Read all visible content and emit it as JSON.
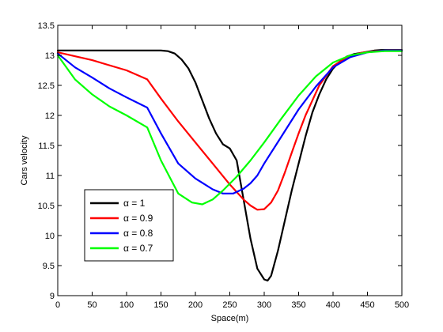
{
  "chart_data": {
    "type": "line",
    "title": "",
    "xlabel": "Space(m)",
    "ylabel": "Cars velocity",
    "xlim": [
      0,
      500
    ],
    "ylim": [
      9,
      13.5
    ],
    "xticks": [
      0,
      50,
      100,
      150,
      200,
      250,
      300,
      350,
      400,
      450,
      500
    ],
    "xtick_labels": [
      "0",
      "50",
      "100",
      "150",
      "200",
      "250",
      "300",
      "350",
      "400",
      "450",
      "500"
    ],
    "yticks": [
      9,
      9.5,
      10,
      10.5,
      11,
      11.5,
      12,
      12.5,
      13,
      13.5
    ],
    "ytick_labels": [
      "9",
      "9.5",
      "10",
      "10.5",
      "11",
      "11.5",
      "12",
      "12.5",
      "13",
      "13.5"
    ],
    "grid": false,
    "legend_position": "lower-left",
    "series": [
      {
        "name": "α = 1",
        "color": "#000000",
        "x": [
          0,
          50,
          100,
          150,
          160,
          170,
          180,
          190,
          200,
          210,
          220,
          230,
          240,
          250,
          260,
          270,
          280,
          290,
          300,
          305,
          310,
          320,
          330,
          340,
          350,
          360,
          370,
          380,
          390,
          400,
          410,
          420,
          430,
          440,
          450,
          460,
          470,
          480,
          500
        ],
        "y": [
          13.08,
          13.08,
          13.08,
          13.08,
          13.07,
          13.03,
          12.93,
          12.78,
          12.55,
          12.25,
          11.95,
          11.7,
          11.52,
          11.45,
          11.25,
          10.6,
          9.95,
          9.45,
          9.27,
          9.25,
          9.33,
          9.75,
          10.25,
          10.75,
          11.2,
          11.65,
          12.05,
          12.35,
          12.6,
          12.78,
          12.9,
          12.98,
          13.02,
          13.04,
          13.06,
          13.08,
          13.09,
          13.09,
          13.09
        ]
      },
      {
        "name": "α = 0.9",
        "color": "#ff0000",
        "x": [
          0,
          50,
          100,
          130,
          150,
          175,
          200,
          225,
          250,
          270,
          280,
          290,
          300,
          310,
          320,
          330,
          340,
          350,
          360,
          380,
          400,
          420,
          440,
          460,
          480,
          500
        ],
        "y": [
          13.05,
          12.92,
          12.75,
          12.6,
          12.28,
          11.9,
          11.55,
          11.2,
          10.85,
          10.6,
          10.5,
          10.43,
          10.44,
          10.55,
          10.75,
          11.05,
          11.38,
          11.7,
          12.0,
          12.5,
          12.82,
          12.97,
          13.04,
          13.07,
          13.08,
          13.08
        ]
      },
      {
        "name": "α = 0.8",
        "color": "#0000ff",
        "x": [
          0,
          25,
          50,
          75,
          100,
          130,
          150,
          175,
          200,
          225,
          240,
          255,
          270,
          280,
          290,
          300,
          325,
          350,
          375,
          400,
          425,
          450,
          475,
          500
        ],
        "y": [
          13.03,
          12.8,
          12.63,
          12.45,
          12.3,
          12.13,
          11.7,
          11.2,
          10.95,
          10.77,
          10.7,
          10.7,
          10.78,
          10.87,
          11.0,
          11.2,
          11.65,
          12.1,
          12.48,
          12.8,
          12.97,
          13.05,
          13.08,
          13.08
        ]
      },
      {
        "name": "α = 0.7",
        "color": "#00ff00",
        "x": [
          0,
          25,
          50,
          75,
          100,
          130,
          150,
          175,
          195,
          210,
          225,
          240,
          260,
          280,
          300,
          325,
          350,
          375,
          400,
          425,
          450,
          475,
          500
        ],
        "y": [
          13.0,
          12.6,
          12.35,
          12.15,
          12.0,
          11.8,
          11.25,
          10.7,
          10.55,
          10.52,
          10.6,
          10.75,
          10.98,
          11.25,
          11.55,
          11.95,
          12.33,
          12.65,
          12.88,
          13.0,
          13.05,
          13.07,
          13.07
        ]
      }
    ]
  }
}
